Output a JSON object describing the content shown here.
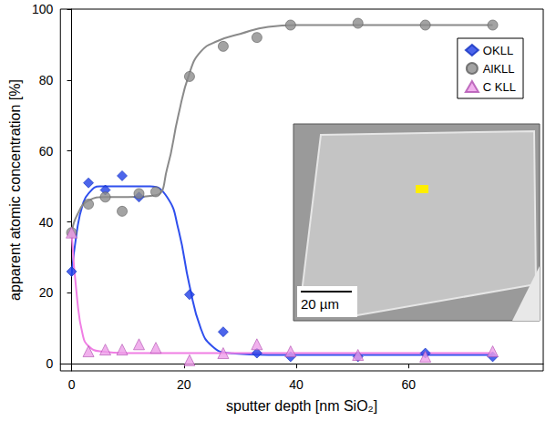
{
  "chart_data": {
    "type": "scatter",
    "x_label": "sputter depth [nm SiO₂]",
    "y_label": "apparent atomic concentration [%]",
    "xlim": [
      -2,
      84
    ],
    "xticks": [
      0,
      20,
      40,
      60
    ],
    "ylim": [
      -2,
      100
    ],
    "yticks": [
      0,
      20,
      40,
      60,
      80,
      100
    ],
    "grid": false,
    "legend": "upper right",
    "annotations": [
      "20 µm"
    ],
    "series": [
      {
        "name": "OKLL",
        "color": "#1f3fe6",
        "marker": "diamond",
        "x": [
          0,
          3,
          6,
          9,
          12,
          21,
          27,
          33,
          39,
          51,
          63,
          75
        ],
        "values": [
          26,
          51,
          49,
          53,
          47,
          19.5,
          9,
          3,
          2,
          2,
          3,
          2
        ],
        "fit": {
          "x": [
            0,
            1,
            2,
            3,
            5,
            10,
            14,
            17,
            19,
            21,
            23,
            25,
            28,
            35,
            75
          ],
          "values": [
            25,
            38,
            45,
            48,
            50,
            50,
            50,
            47,
            38,
            22,
            10,
            5,
            3,
            2.5,
            2.5
          ]
        }
      },
      {
        "name": "AlKLL",
        "color": "#8c8c8c",
        "marker": "circle",
        "x": [
          0,
          3,
          6,
          9,
          12,
          15,
          21,
          27,
          33,
          39,
          51,
          63,
          75
        ],
        "values": [
          37,
          45,
          47,
          43,
          48,
          48.5,
          81,
          89.5,
          92,
          95.5,
          96,
          95.5,
          95.5
        ],
        "fit": {
          "x": [
            0,
            1,
            3,
            6,
            10,
            15,
            17,
            19,
            21,
            23,
            26,
            30,
            35,
            40,
            75
          ],
          "values": [
            37,
            42,
            46,
            47,
            47,
            47.5,
            55,
            70,
            82,
            88,
            91,
            93,
            95,
            95.5,
            95.5
          ]
        }
      },
      {
        "name": "C KLL",
        "color": "#ee9ee8",
        "marker": "triangle",
        "x": [
          0,
          3,
          6,
          9,
          12,
          15,
          21,
          27,
          33,
          39,
          51,
          63,
          75
        ],
        "values": [
          37,
          3.5,
          4,
          4,
          5.5,
          4.5,
          1,
          3,
          5.5,
          3.5,
          2.5,
          2,
          3.5
        ],
        "fit": {
          "x": [
            0,
            1,
            2,
            3,
            5,
            10,
            75
          ],
          "values": [
            37,
            18,
            8,
            5,
            3.5,
            3,
            3
          ]
        }
      }
    ]
  }
}
